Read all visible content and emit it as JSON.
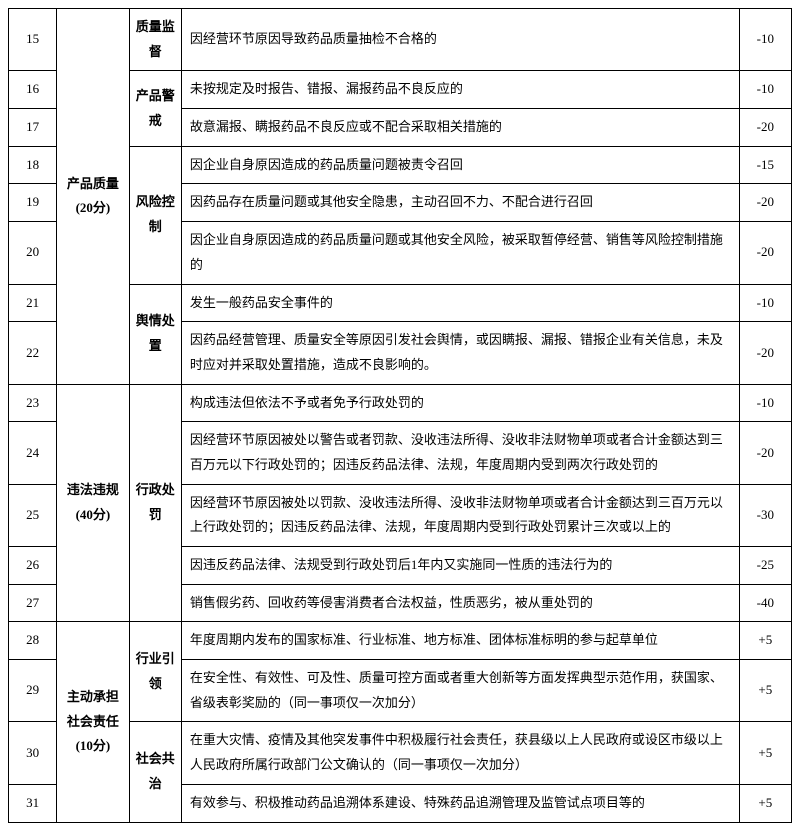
{
  "rows": [
    {
      "num": "15",
      "cat": "产品质量 (20分)",
      "catRowspan": 8,
      "sub": "质量监督",
      "subRowspan": 1,
      "desc": "因经营环节原因导致药品质量抽检不合格的",
      "score": "-10"
    },
    {
      "num": "16",
      "sub": "产品警戒",
      "subRowspan": 2,
      "desc": "未按规定及时报告、错报、漏报药品不良反应的",
      "score": "-10"
    },
    {
      "num": "17",
      "desc": "故意漏报、瞒报药品不良反应或不配合采取相关措施的",
      "score": "-20"
    },
    {
      "num": "18",
      "sub": "风险控制",
      "subRowspan": 3,
      "desc": "因企业自身原因造成的药品质量问题被责令召回",
      "score": "-15"
    },
    {
      "num": "19",
      "desc": "因药品存在质量问题或其他安全隐患，主动召回不力、不配合进行召回",
      "score": "-20"
    },
    {
      "num": "20",
      "desc": "因企业自身原因造成的药品质量问题或其他安全风险，被采取暂停经营、销售等风险控制措施的",
      "score": "-20"
    },
    {
      "num": "21",
      "sub": "舆情处置",
      "subRowspan": 2,
      "desc": "发生一般药品安全事件的",
      "score": "-10"
    },
    {
      "num": "22",
      "desc": "因药品经营管理、质量安全等原因引发社会舆情，或因瞒报、漏报、错报企业有关信息，未及时应对并采取处置措施，造成不良影响的。",
      "score": "-20"
    },
    {
      "num": "23",
      "cat": "违法违规 (40分)",
      "catRowspan": 5,
      "sub": "行政处罚",
      "subRowspan": 5,
      "desc": "构成违法但依法不予或者免予行政处罚的",
      "score": "-10"
    },
    {
      "num": "24",
      "desc": "因经营环节原因被处以警告或者罚款、没收违法所得、没收非法财物单项或者合计金额达到三百万元以下行政处罚的；因违反药品法律、法规，年度周期内受到两次行政处罚的",
      "score": "-20"
    },
    {
      "num": "25",
      "desc": "因经营环节原因被处以罚款、没收违法所得、没收非法财物单项或者合计金额达到三百万元以上行政处罚的；因违反药品法律、法规，年度周期内受到行政处罚累计三次或以上的",
      "score": "-30"
    },
    {
      "num": "26",
      "desc": "因违反药品法律、法规受到行政处罚后1年内又实施同一性质的违法行为的",
      "score": "-25"
    },
    {
      "num": "27",
      "desc": "销售假劣药、回收药等侵害消费者合法权益，性质恶劣，被从重处罚的",
      "score": "-40"
    },
    {
      "num": "28",
      "cat": "主动承担社会责任 (10分)",
      "catRowspan": 4,
      "sub": "行业引领",
      "subRowspan": 2,
      "desc": "年度周期内发布的国家标准、行业标准、地方标准、团体标准标明的参与起草单位",
      "score": "+5"
    },
    {
      "num": "29",
      "desc": "在安全性、有效性、可及性、质量可控方面或者重大创新等方面发挥典型示范作用，获国家、省级表彰奖励的（同一事项仅一次加分）",
      "score": "+5"
    },
    {
      "num": "30",
      "sub": "社会共治",
      "subRowspan": 2,
      "desc": "在重大灾情、疫情及其他突发事件中积极履行社会责任，获县级以上人民政府或设区市级以上人民政府所属行政部门公文确认的（同一事项仅一次加分）",
      "score": "+5"
    },
    {
      "num": "31",
      "desc": "有效参与、积极推动药品追溯体系建设、特殊药品追溯管理及监管试点项目等的",
      "score": "+5"
    }
  ]
}
